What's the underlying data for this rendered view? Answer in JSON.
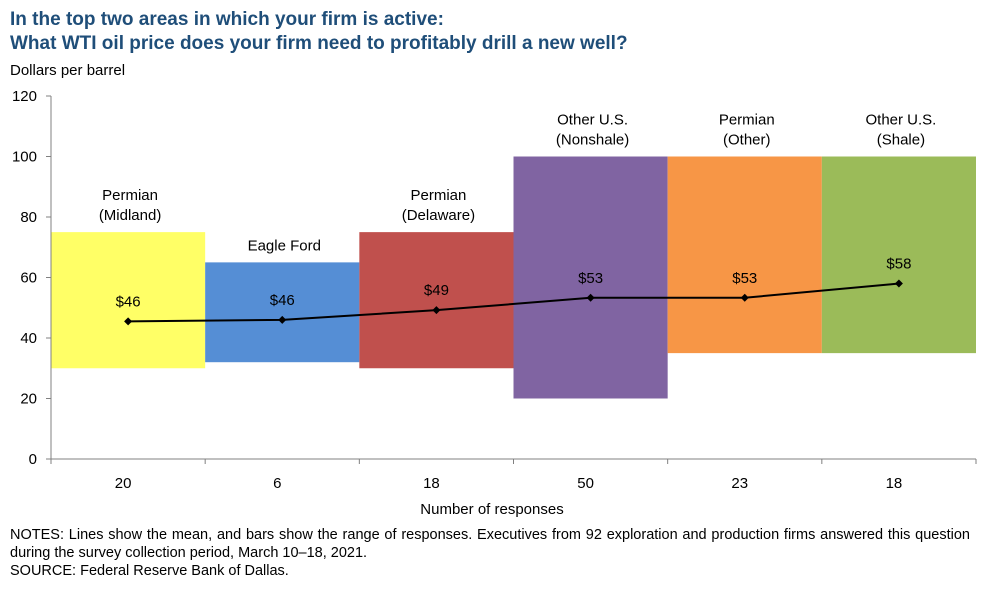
{
  "title": {
    "line1": "In the top two areas in which your firm is active:",
    "line2": "What WTI oil price does your firm need to profitably drill a new well?"
  },
  "unit_label": "Dollars per barrel",
  "notes": {
    "line1": "NOTES: Lines show the mean, and bars show the range of responses. Executives from 92 exploration and production firms answered this question during the survey collection period, March 10–18, 2021.",
    "line2": "SOURCE: Federal Reserve Bank of Dallas."
  },
  "chart_data": {
    "type": "bar",
    "xlabel": "Number of responses",
    "ylabel": "Dollars per barrel",
    "ylim": [
      0,
      120
    ],
    "yticks": [
      0,
      20,
      40,
      60,
      80,
      100,
      120
    ],
    "grid": false,
    "categories": [
      {
        "name": [
          "Permian",
          "(Midland)"
        ],
        "responses": "20",
        "low": 30,
        "high": 75,
        "mean": 45.5,
        "mean_label": "$46",
        "color": "#ffff66"
      },
      {
        "name": [
          "Eagle Ford"
        ],
        "responses": "6",
        "low": 32,
        "high": 65,
        "mean": 46,
        "mean_label": "$46",
        "color": "#558ed5"
      },
      {
        "name": [
          "Permian",
          "(Delaware)"
        ],
        "responses": "18",
        "low": 30,
        "high": 75,
        "mean": 49.2,
        "mean_label": "$49",
        "color": "#c0504d"
      },
      {
        "name": [
          "Other U.S.",
          "(Nonshale)"
        ],
        "responses": "50",
        "low": 20,
        "high": 100,
        "mean": 53.3,
        "mean_label": "$53",
        "color": "#8064a2"
      },
      {
        "name": [
          "Permian",
          "(Other)"
        ],
        "responses": "23",
        "low": 35,
        "high": 100,
        "mean": 53.3,
        "mean_label": "$53",
        "color": "#f79646"
      },
      {
        "name": [
          "Other U.S.",
          "(Shale)"
        ],
        "responses": "18",
        "low": 35,
        "high": 100,
        "mean": 58,
        "mean_label": "$58",
        "color": "#9bbb59"
      }
    ],
    "mean_line_color": "#000000"
  }
}
